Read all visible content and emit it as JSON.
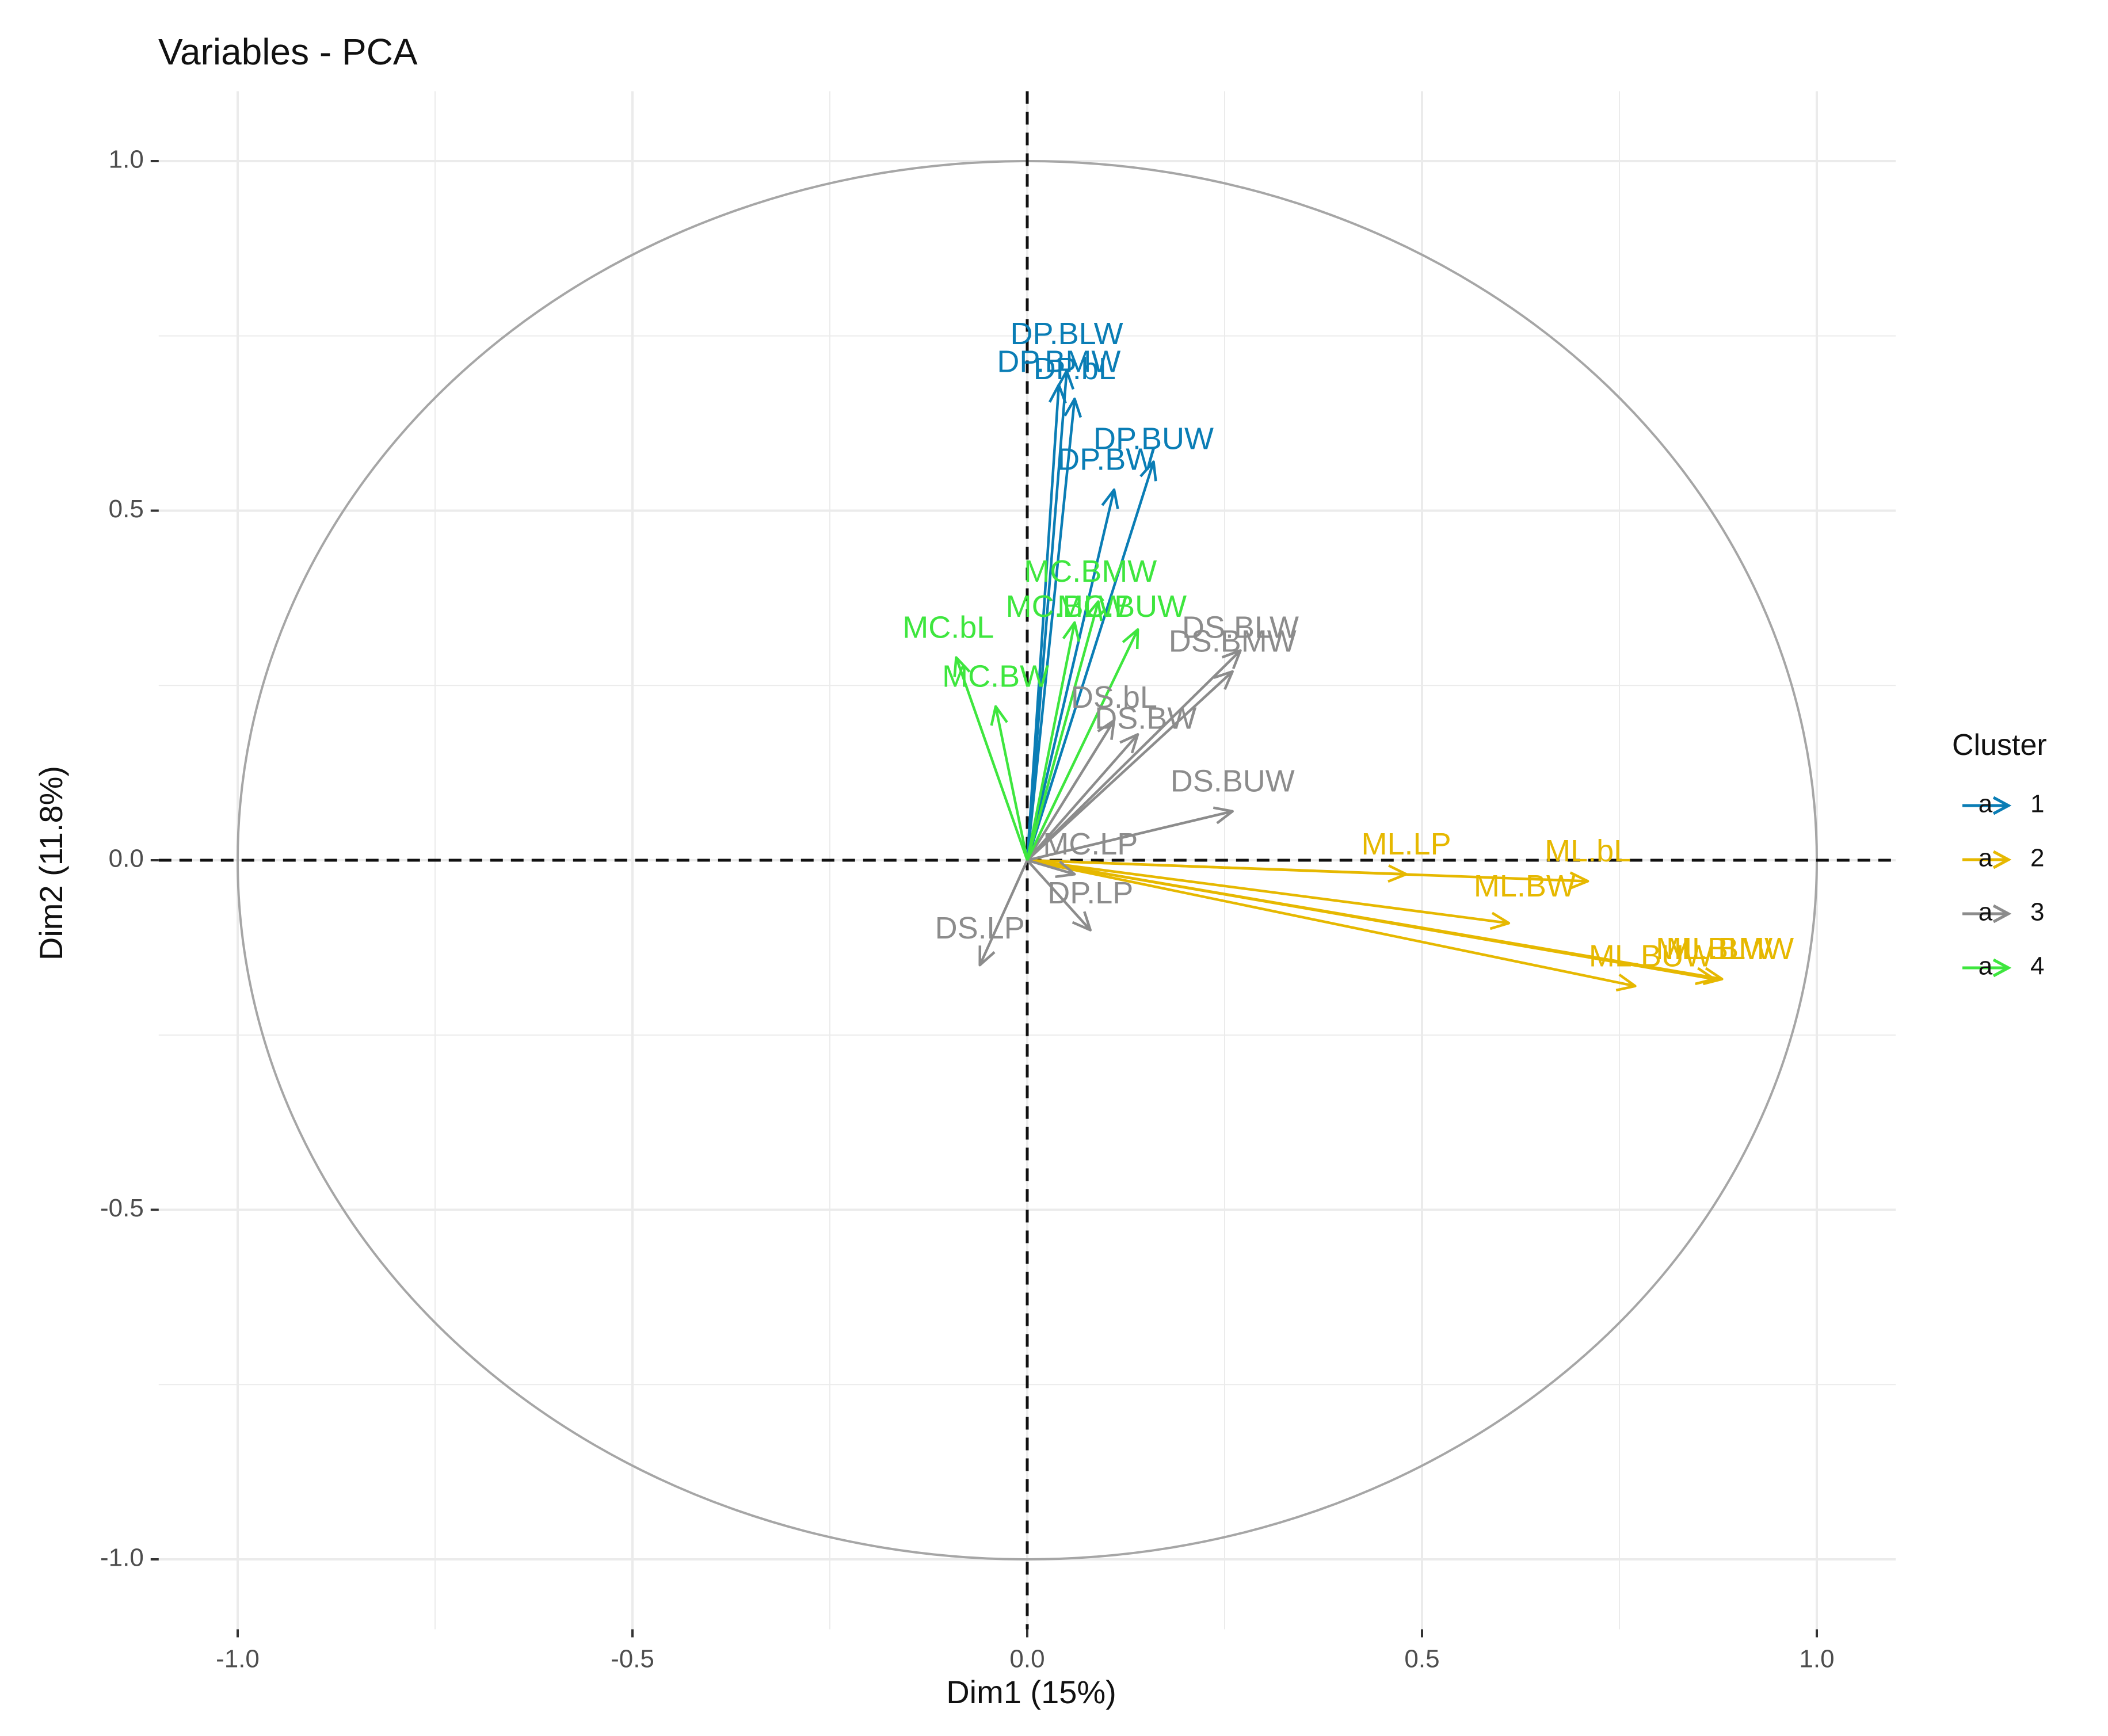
{
  "chart_data": {
    "type": "scatter",
    "subtype": "pca-variable-correlation-circle",
    "title": "Variables - PCA",
    "xlabel": "Dim1 (15%)",
    "ylabel": "Dim2 (11.8%)",
    "xlim": [
      -1.1,
      1.1
    ],
    "ylim": [
      -1.1,
      1.1
    ],
    "x_ticks": [
      -1.0,
      -0.5,
      0.0,
      0.5,
      1.0
    ],
    "y_ticks": [
      -1.0,
      -0.5,
      0.0,
      0.5,
      1.0
    ],
    "x_tick_labels": [
      "-1.0",
      "-0.5",
      "0.0",
      "0.5",
      "1.0"
    ],
    "y_tick_labels": [
      "-1.0",
      "-0.5",
      "0.0",
      "0.5",
      "1.0"
    ],
    "grid": true,
    "unit_circle": true,
    "legend": {
      "title": "Cluster",
      "position": "right",
      "glyph": "a",
      "entries": [
        {
          "label": "1",
          "color": "#0a7db5"
        },
        {
          "label": "2",
          "color": "#e6b800"
        },
        {
          "label": "3",
          "color": "#8c8c8c"
        },
        {
          "label": "4",
          "color": "#3ee63e"
        }
      ]
    },
    "variables": [
      {
        "name": "DP.BLW",
        "cluster": 1,
        "x": 0.05,
        "y": 0.7,
        "lx": 0.05,
        "ly": 0.75
      },
      {
        "name": "DP.BMW",
        "cluster": 1,
        "x": 0.04,
        "y": 0.68,
        "lx": 0.04,
        "ly": 0.71
      },
      {
        "name": "DP.bL",
        "cluster": 1,
        "x": 0.06,
        "y": 0.66,
        "lx": 0.06,
        "ly": 0.7
      },
      {
        "name": "DP.BUW",
        "cluster": 1,
        "x": 0.16,
        "y": 0.57,
        "lx": 0.16,
        "ly": 0.6
      },
      {
        "name": "DP.BW",
        "cluster": 1,
        "x": 0.11,
        "y": 0.53,
        "lx": 0.1,
        "ly": 0.57
      },
      {
        "name": "ML.LP",
        "cluster": 2,
        "x": 0.48,
        "y": -0.02,
        "lx": 0.48,
        "ly": 0.02
      },
      {
        "name": "ML.bL",
        "cluster": 2,
        "x": 0.71,
        "y": -0.03,
        "lx": 0.71,
        "ly": 0.01
      },
      {
        "name": "ML.BW",
        "cluster": 2,
        "x": 0.61,
        "y": -0.09,
        "lx": 0.63,
        "ly": -0.04
      },
      {
        "name": "ML.BUW",
        "cluster": 2,
        "x": 0.77,
        "y": -0.18,
        "lx": 0.79,
        "ly": -0.14
      },
      {
        "name": "ML.BMW",
        "cluster": 2,
        "x": 0.87,
        "y": -0.17,
        "lx": 0.89,
        "ly": -0.13
      },
      {
        "name": "ML.BLW",
        "cluster": 2,
        "x": 0.88,
        "y": -0.17,
        "lx": 0.87,
        "ly": -0.13
      },
      {
        "name": "DS.BLW",
        "cluster": 3,
        "x": 0.27,
        "y": 0.3,
        "lx": 0.27,
        "ly": 0.33
      },
      {
        "name": "DS.BMW",
        "cluster": 3,
        "x": 0.26,
        "y": 0.27,
        "lx": 0.26,
        "ly": 0.31
      },
      {
        "name": "DS.bL",
        "cluster": 3,
        "x": 0.11,
        "y": 0.2,
        "lx": 0.11,
        "ly": 0.23
      },
      {
        "name": "DS.BW",
        "cluster": 3,
        "x": 0.14,
        "y": 0.18,
        "lx": 0.15,
        "ly": 0.2
      },
      {
        "name": "DS.BUW",
        "cluster": 3,
        "x": 0.26,
        "y": 0.07,
        "lx": 0.26,
        "ly": 0.11
      },
      {
        "name": "MC.LP",
        "cluster": 3,
        "x": 0.06,
        "y": -0.02,
        "lx": 0.08,
        "ly": 0.02
      },
      {
        "name": "DP.LP",
        "cluster": 3,
        "x": 0.08,
        "y": -0.1,
        "lx": 0.08,
        "ly": -0.05
      },
      {
        "name": "DS.LP",
        "cluster": 3,
        "x": -0.06,
        "y": -0.15,
        "lx": -0.06,
        "ly": -0.1
      },
      {
        "name": "MC.BMW",
        "cluster": 4,
        "x": 0.09,
        "y": 0.37,
        "lx": 0.08,
        "ly": 0.41
      },
      {
        "name": "MC.BLW",
        "cluster": 4,
        "x": 0.06,
        "y": 0.34,
        "lx": 0.05,
        "ly": 0.36
      },
      {
        "name": "MC.BUW",
        "cluster": 4,
        "x": 0.14,
        "y": 0.33,
        "lx": 0.12,
        "ly": 0.36
      },
      {
        "name": "MC.bL",
        "cluster": 4,
        "x": -0.09,
        "y": 0.29,
        "lx": -0.1,
        "ly": 0.33
      },
      {
        "name": "MC.BW",
        "cluster": 4,
        "x": -0.04,
        "y": 0.22,
        "lx": -0.04,
        "ly": 0.26
      }
    ]
  }
}
